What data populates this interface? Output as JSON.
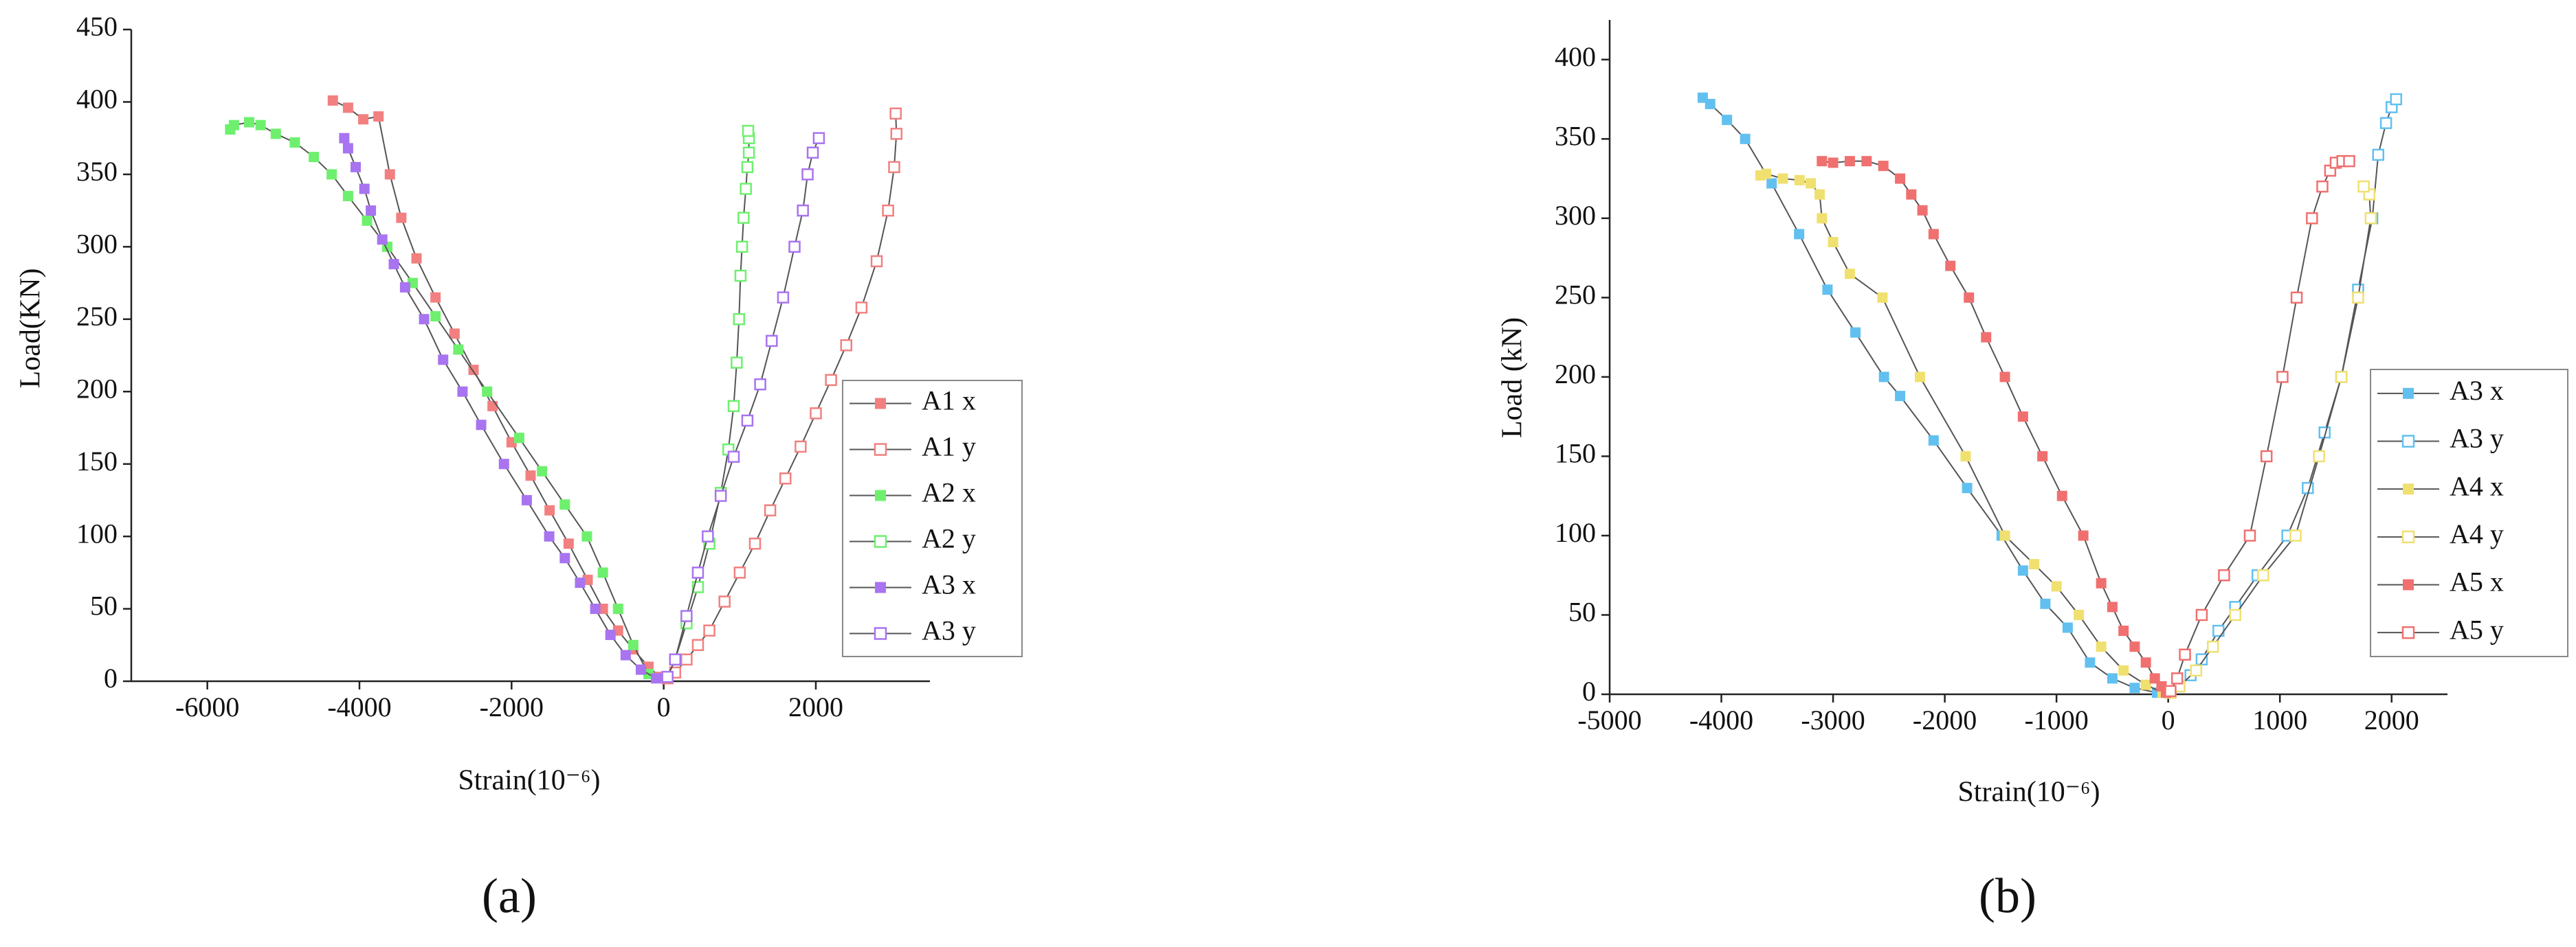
{
  "chart_data": [
    {
      "type": "line",
      "panel_label": "(a)",
      "x_label": "Strain(10⁻⁶)",
      "y_label": "Load(KN)",
      "xlim": [
        -7000,
        3500
      ],
      "xticks": [
        -6000,
        -4000,
        -2000,
        0,
        2000
      ],
      "ylim": [
        0,
        450
      ],
      "yticks": [
        0,
        50,
        100,
        150,
        200,
        250,
        300,
        350,
        400,
        450
      ],
      "legend": "lower right",
      "line_color": "#555555",
      "series": [
        {
          "name": "A1 x",
          "color": "#f28080",
          "marker": "filled",
          "x": [
            -50,
            -200,
            -400,
            -600,
            -800,
            -1000,
            -1250,
            -1500,
            -1750,
            -2000,
            -2250,
            -2500,
            -2750,
            -3000,
            -3250,
            -3450,
            -3600,
            -3750,
            -3950,
            -4150,
            -4350
          ],
          "values": [
            3,
            10,
            22,
            35,
            50,
            70,
            95,
            118,
            142,
            165,
            190,
            215,
            240,
            265,
            292,
            320,
            350,
            390,
            388,
            396,
            401
          ]
        },
        {
          "name": "A1 y",
          "color": "#f28080",
          "marker": "hollow",
          "x": [
            50,
            150,
            300,
            450,
            600,
            800,
            1000,
            1200,
            1400,
            1600,
            1800,
            2000,
            2200,
            2400,
            2600,
            2800,
            2950,
            3030,
            3060,
            3050
          ],
          "values": [
            2,
            6,
            15,
            25,
            35,
            55,
            75,
            95,
            118,
            140,
            162,
            185,
            208,
            232,
            258,
            290,
            325,
            355,
            378,
            392
          ]
        },
        {
          "name": "A2 x",
          "color": "#6ef06e",
          "marker": "filled",
          "x": [
            -200,
            -400,
            -600,
            -800,
            -1010,
            -1300,
            -1600,
            -1900,
            -2322,
            -2700,
            -3000,
            -3300,
            -3634,
            -3900,
            -4150,
            -4365,
            -4600,
            -4850,
            -5100,
            -5300,
            -5450,
            -5650,
            -5700
          ],
          "values": [
            5,
            25,
            50,
            75,
            100,
            122,
            145,
            168,
            200,
            229,
            252,
            275,
            300,
            318,
            335,
            350,
            362,
            372,
            378,
            384,
            386,
            384,
            381
          ]
        },
        {
          "name": "A2 y",
          "color": "#6ef06e",
          "marker": "hollow",
          "x": [
            50,
            150,
            300,
            450,
            600,
            750,
            850,
            920,
            960,
            990,
            1010,
            1030,
            1050,
            1080,
            1100,
            1120,
            1120,
            1110
          ],
          "values": [
            3,
            15,
            40,
            65,
            95,
            130,
            160,
            190,
            220,
            250,
            280,
            300,
            320,
            340,
            355,
            365,
            375,
            380
          ]
        },
        {
          "name": "A3 x",
          "color": "#a874f0",
          "marker": "filled",
          "x": [
            -100,
            -300,
            -500,
            -700,
            -900,
            -1100,
            -1300,
            -1505,
            -1800,
            -2100,
            -2400,
            -2645,
            -2900,
            -3150,
            -3400,
            -3548,
            -3700,
            -3850,
            -3935,
            -4050,
            -4150,
            -4200
          ],
          "values": [
            2,
            8,
            18,
            32,
            50,
            68,
            85,
            100,
            125,
            150,
            177,
            200,
            222,
            250,
            272,
            288,
            305,
            325,
            340,
            355,
            368,
            375
          ]
        },
        {
          "name": "A3 y",
          "color": "#a874f0",
          "marker": "hollow",
          "x": [
            50,
            150,
            300,
            450,
            580,
            750,
            920,
            1100,
            1269,
            1420,
            1570,
            1720,
            1830,
            1892,
            1960,
            2040
          ],
          "values": [
            3,
            15,
            45,
            75,
            100,
            128,
            155,
            180,
            205,
            235,
            265,
            300,
            325,
            350,
            365,
            375
          ]
        }
      ]
    },
    {
      "type": "line",
      "panel_label": "(b)",
      "x_label": "Strain(10⁻⁶)",
      "y_label": "Load (kN)",
      "xlim": [
        -5000,
        2500
      ],
      "xticks": [
        -5000,
        -4000,
        -3000,
        -2000,
        -1000,
        0,
        1000,
        2000
      ],
      "ylim": [
        0,
        425
      ],
      "yticks": [
        0,
        50,
        100,
        150,
        200,
        250,
        300,
        350,
        400
      ],
      "legend": "lower right",
      "line_color": "#555555",
      "series": [
        {
          "name": "A3 x",
          "color": "#62c0f0",
          "marker": "filled",
          "x": [
            -100,
            -300,
            -500,
            -700,
            -900,
            -1100,
            -1300,
            -1491,
            -1800,
            -2100,
            -2400,
            -2544,
            -2800,
            -3050,
            -3304,
            -3550,
            -3787,
            -3950,
            -4100,
            -4167
          ],
          "values": [
            1,
            4,
            10,
            20,
            42,
            57,
            78,
            100,
            130,
            160,
            188,
            200,
            228,
            255,
            290,
            322,
            350,
            362,
            372,
            376
          ]
        },
        {
          "name": "A3 y",
          "color": "#62c0f0",
          "marker": "hollow",
          "x": [
            20,
            100,
            200,
            300,
            450,
            600,
            800,
            1067,
            1250,
            1400,
            1550,
            1700,
            1827,
            1880,
            1950,
            2000,
            2040
          ],
          "values": [
            1,
            5,
            12,
            22,
            40,
            55,
            75,
            100,
            130,
            165,
            200,
            255,
            300,
            340,
            360,
            370,
            375
          ]
        },
        {
          "name": "A4 x",
          "color": "#f0e070",
          "marker": "filled",
          "x": [
            -50,
            -200,
            -400,
            -600,
            -800,
            -1000,
            -1200,
            -1462,
            -1813,
            -2222,
            -2558,
            -2850,
            -3000,
            -3100,
            -3120,
            -3200,
            -3300,
            -3450,
            -3600,
            -3650
          ],
          "values": [
            1,
            6,
            15,
            30,
            50,
            68,
            82,
            100,
            150,
            200,
            250,
            265,
            285,
            300,
            315,
            322,
            324,
            325,
            328,
            327
          ]
        },
        {
          "name": "A4 y",
          "color": "#f0e070",
          "marker": "hollow",
          "x": [
            20,
            100,
            250,
            400,
            600,
            850,
            1140,
            1350,
            1550,
            1700,
            1813,
            1800,
            1750
          ],
          "values": [
            1,
            5,
            15,
            30,
            50,
            75,
            100,
            150,
            200,
            250,
            300,
            315,
            320
          ]
        },
        {
          "name": "A5 x",
          "color": "#f07070",
          "marker": "filled",
          "x": [
            -20,
            -60,
            -120,
            -200,
            -300,
            -400,
            -500,
            -600,
            -760,
            -950,
            -1126,
            -1300,
            -1462,
            -1630,
            -1784,
            -1950,
            -2100,
            -2200,
            -2300,
            -2400,
            -2550,
            -2700,
            -2850,
            -3000,
            -3100
          ],
          "values": [
            1,
            5,
            10,
            20,
            30,
            40,
            55,
            70,
            100,
            125,
            150,
            175,
            200,
            225,
            250,
            270,
            290,
            305,
            315,
            325,
            333,
            336,
            336,
            335,
            336
          ]
        },
        {
          "name": "A5 y",
          "color": "#f07070",
          "marker": "hollow",
          "x": [
            20,
            80,
            150,
            300,
            500,
            731,
            880,
            1023,
            1150,
            1287,
            1380,
            1450,
            1500,
            1560,
            1620
          ],
          "values": [
            2,
            10,
            25,
            50,
            75,
            100,
            150,
            200,
            250,
            300,
            320,
            330,
            335,
            336,
            336
          ]
        }
      ]
    }
  ]
}
